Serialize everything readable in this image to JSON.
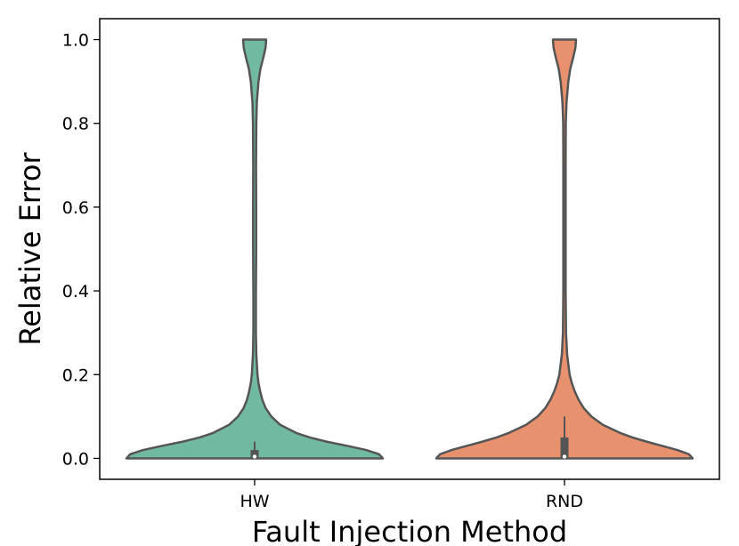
{
  "chart_data": {
    "type": "violin",
    "title": "",
    "xlabel": "Fault Injection Method",
    "ylabel": "Relative Error",
    "ylim": [
      -0.05,
      1.05
    ],
    "yticks": [
      "0.0",
      "0.2",
      "0.4",
      "0.6",
      "0.8",
      "1.0"
    ],
    "categories": [
      "HW",
      "RND"
    ],
    "grid": false,
    "legend": "none",
    "series": [
      {
        "category": "HW",
        "color": "#72b9a2",
        "quartiles": {
          "q1": 0.0,
          "median": 0.0,
          "q3": 0.02
        },
        "whisker_top": 0.04,
        "density": [
          [
            0.0,
            1.0
          ],
          [
            0.01,
            0.97
          ],
          [
            0.02,
            0.87
          ],
          [
            0.03,
            0.72
          ],
          [
            0.04,
            0.56
          ],
          [
            0.05,
            0.43
          ],
          [
            0.06,
            0.33
          ],
          [
            0.08,
            0.2
          ],
          [
            0.1,
            0.13
          ],
          [
            0.12,
            0.086
          ],
          [
            0.14,
            0.06
          ],
          [
            0.16,
            0.043
          ],
          [
            0.18,
            0.03
          ],
          [
            0.2,
            0.022
          ],
          [
            0.25,
            0.013
          ],
          [
            0.3,
            0.01
          ],
          [
            0.4,
            0.01
          ],
          [
            0.5,
            0.012
          ],
          [
            0.6,
            0.012
          ],
          [
            0.7,
            0.011
          ],
          [
            0.8,
            0.013
          ],
          [
            0.85,
            0.017
          ],
          [
            0.9,
            0.03
          ],
          [
            0.93,
            0.045
          ],
          [
            0.96,
            0.07
          ],
          [
            0.98,
            0.085
          ],
          [
            1.0,
            0.09
          ]
        ]
      },
      {
        "category": "RND",
        "color": "#e8916f",
        "quartiles": {
          "q1": 0.0,
          "median": 0.0,
          "q3": 0.05
        },
        "whisker_top": 0.1,
        "density": [
          [
            0.0,
            1.0
          ],
          [
            0.01,
            0.97
          ],
          [
            0.02,
            0.88
          ],
          [
            0.03,
            0.76
          ],
          [
            0.04,
            0.64
          ],
          [
            0.05,
            0.53
          ],
          [
            0.06,
            0.44
          ],
          [
            0.08,
            0.3
          ],
          [
            0.1,
            0.21
          ],
          [
            0.12,
            0.15
          ],
          [
            0.14,
            0.11
          ],
          [
            0.16,
            0.08
          ],
          [
            0.18,
            0.057
          ],
          [
            0.2,
            0.04
          ],
          [
            0.25,
            0.02
          ],
          [
            0.3,
            0.012
          ],
          [
            0.4,
            0.009
          ],
          [
            0.5,
            0.009
          ],
          [
            0.6,
            0.009
          ],
          [
            0.7,
            0.009
          ],
          [
            0.8,
            0.01
          ],
          [
            0.85,
            0.016
          ],
          [
            0.9,
            0.03
          ],
          [
            0.93,
            0.045
          ],
          [
            0.96,
            0.07
          ],
          [
            0.98,
            0.085
          ],
          [
            1.0,
            0.09
          ]
        ]
      }
    ]
  }
}
